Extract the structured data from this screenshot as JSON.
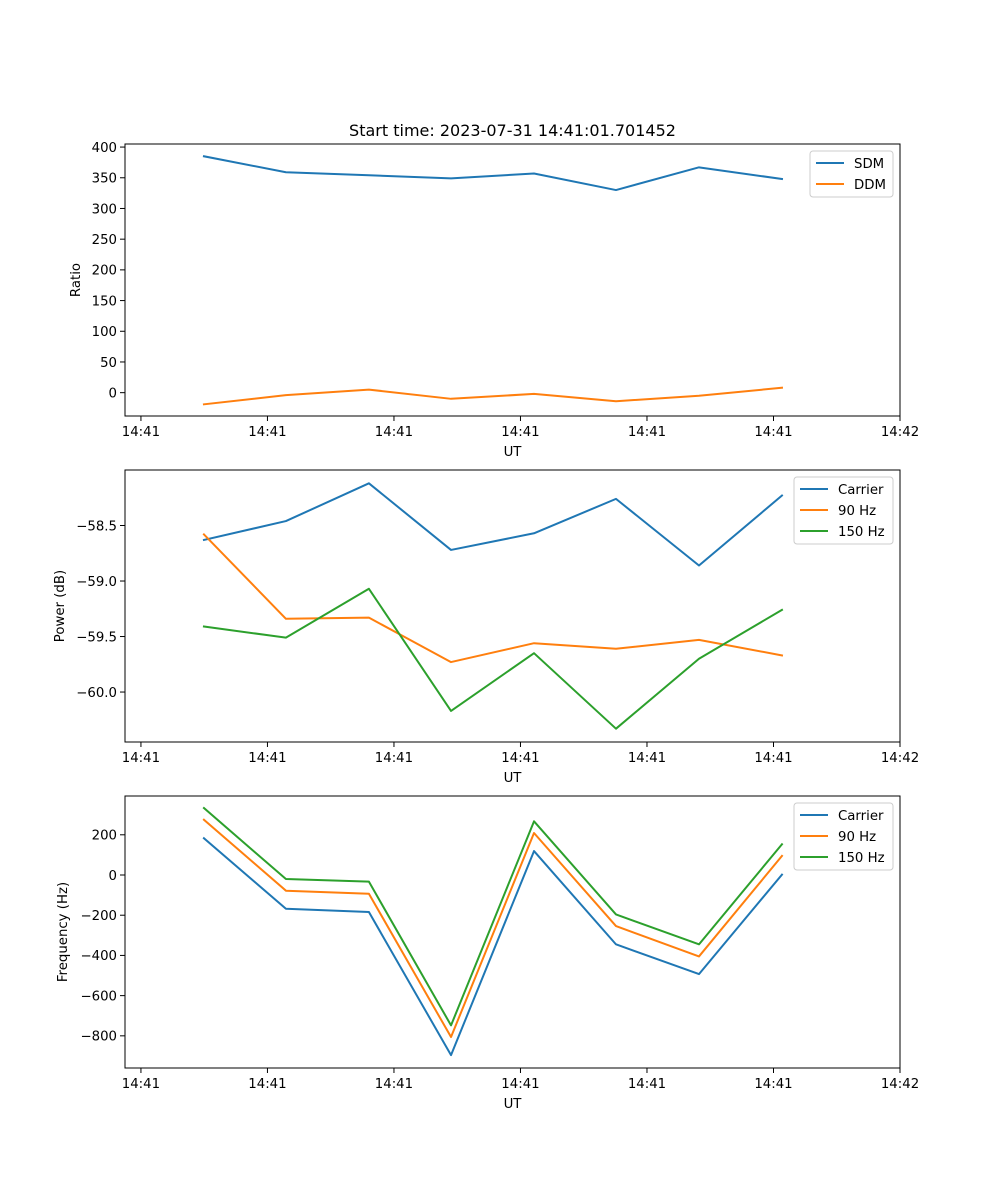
{
  "figure": {
    "title": "Start time: 2023-07-31 14:41:01.701452"
  },
  "chart_data": [
    {
      "type": "line",
      "title": "Start time: 2023-07-31 14:41:01.701452",
      "xlabel": "UT",
      "ylabel": "Ratio",
      "x_unit": "seconds after 14:41:00 UT",
      "x": [
        4.98,
        11.46,
        18.02,
        24.51,
        31.07,
        37.55,
        44.11,
        50.67
      ],
      "xlim": [
        -1.26,
        60.0
      ],
      "xticks": [
        0,
        10,
        20,
        30,
        40,
        50,
        60
      ],
      "xtick_labels": [
        "14:41",
        "14:41",
        "14:41",
        "14:41",
        "14:41",
        "14:41",
        "14:42"
      ],
      "ylim": [
        -38,
        405
      ],
      "yticks": [
        0,
        50,
        100,
        150,
        200,
        250,
        300,
        350,
        400
      ],
      "ytick_labels": [
        "0",
        "50",
        "100",
        "150",
        "200",
        "250",
        "300",
        "350",
        "400"
      ],
      "grid": false,
      "legend": "top-right",
      "series": [
        {
          "name": "SDM",
          "color": "#1f77b4",
          "values": [
            385,
            359,
            354,
            349,
            357,
            330,
            367,
            348
          ]
        },
        {
          "name": "DDM",
          "color": "#ff7f0e",
          "values": [
            -19,
            -4,
            5,
            -10,
            -2,
            -14,
            -5,
            8
          ]
        }
      ]
    },
    {
      "type": "line",
      "title": "",
      "xlabel": "UT",
      "ylabel": "Power (dB)",
      "x_unit": "seconds after 14:41:00 UT",
      "x": [
        4.98,
        11.46,
        18.02,
        24.51,
        31.07,
        37.55,
        44.11,
        50.67
      ],
      "xlim": [
        -1.26,
        60.0
      ],
      "xticks": [
        0,
        10,
        20,
        30,
        40,
        50,
        60
      ],
      "xtick_labels": [
        "14:41",
        "14:41",
        "14:41",
        "14:41",
        "14:41",
        "14:41",
        "14:42"
      ],
      "ylim": [
        -60.45,
        -58.0
      ],
      "yticks": [
        -58.5,
        -59.0,
        -59.5,
        -60.0
      ],
      "ytick_labels": [
        "−58.5",
        "−59.0",
        "−59.5",
        "−60.0"
      ],
      "grid": false,
      "legend": "top-right",
      "series": [
        {
          "name": "Carrier",
          "color": "#1f77b4",
          "values": [
            -58.63,
            -58.46,
            -58.12,
            -58.72,
            -58.57,
            -58.26,
            -58.86,
            -58.23
          ]
        },
        {
          "name": "90 Hz",
          "color": "#ff7f0e",
          "values": [
            -58.58,
            -59.34,
            -59.33,
            -59.73,
            -59.56,
            -59.61,
            -59.53,
            -59.67
          ]
        },
        {
          "name": "150 Hz",
          "color": "#2ca02c",
          "values": [
            -59.41,
            -59.51,
            -59.07,
            -60.17,
            -59.65,
            -60.33,
            -59.7,
            -59.26
          ]
        }
      ]
    },
    {
      "type": "line",
      "title": "",
      "xlabel": "UT",
      "ylabel": "Frequency (Hz)",
      "x_unit": "seconds after 14:41:00 UT",
      "x": [
        4.98,
        11.46,
        18.02,
        24.51,
        31.07,
        37.55,
        44.11,
        50.67
      ],
      "xlim": [
        -1.26,
        60.0
      ],
      "xticks": [
        0,
        10,
        20,
        30,
        40,
        50,
        60
      ],
      "xtick_labels": [
        "14:41",
        "14:41",
        "14:41",
        "14:41",
        "14:41",
        "14:41",
        "14:42"
      ],
      "ylim": [
        -960,
        393
      ],
      "yticks": [
        200,
        0,
        -200,
        -400,
        -600,
        -800
      ],
      "ytick_labels": [
        "200",
        "0",
        "−200",
        "−400",
        "−600",
        "−800"
      ],
      "grid": false,
      "legend": "top-right",
      "series": [
        {
          "name": "Carrier",
          "color": "#1f77b4",
          "values": [
            183,
            -168,
            -184,
            -896,
            119,
            -345,
            -493,
            2
          ]
        },
        {
          "name": "90 Hz",
          "color": "#ff7f0e",
          "values": [
            275,
            -78,
            -93,
            -806,
            209,
            -254,
            -405,
            95
          ]
        },
        {
          "name": "150 Hz",
          "color": "#2ca02c",
          "values": [
            333,
            -20,
            -33,
            -748,
            267,
            -196,
            -345,
            153
          ]
        }
      ]
    }
  ]
}
